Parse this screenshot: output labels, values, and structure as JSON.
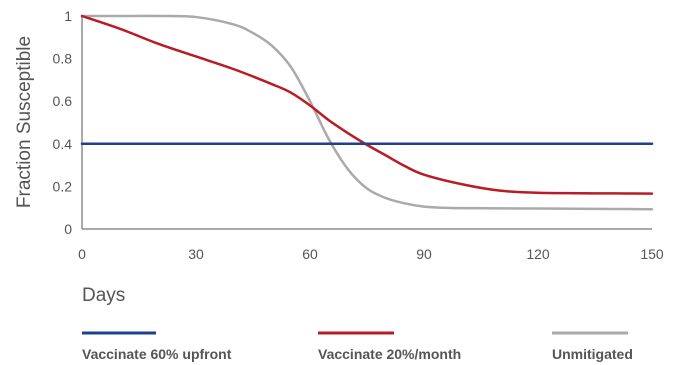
{
  "chart_data": {
    "type": "line",
    "title": "",
    "xlabel": "Days",
    "ylabel": "Fraction Susceptible",
    "xlim": [
      0,
      150
    ],
    "ylim": [
      0,
      1
    ],
    "x_ticks": [
      0,
      30,
      60,
      90,
      120,
      150
    ],
    "x_tick_labels": [
      "0",
      "30",
      "60",
      "90",
      "120",
      "150"
    ],
    "y_ticks": [
      0,
      0.2,
      0.4,
      0.6,
      0.8,
      1
    ],
    "y_tick_labels": [
      "0",
      "0.2",
      "0.4",
      "0.6",
      "0.8",
      "1"
    ],
    "grid": false,
    "legend_position": "bottom",
    "series": [
      {
        "name": "Vaccinate 60% upfront",
        "color": "#1f3f8f",
        "x": [
          0,
          30,
          60,
          90,
          120,
          150
        ],
        "y": [
          0.4,
          0.4,
          0.4,
          0.4,
          0.4,
          0.4
        ]
      },
      {
        "name": "Vaccinate 20%/month",
        "color": "#b81c25",
        "x": [
          0,
          10,
          20,
          30,
          40,
          50,
          55,
          60,
          65,
          70,
          75,
          80,
          85,
          90,
          100,
          110,
          120,
          130,
          140,
          150
        ],
        "y": [
          1.0,
          0.94,
          0.87,
          0.81,
          0.75,
          0.68,
          0.64,
          0.58,
          0.51,
          0.45,
          0.395,
          0.345,
          0.295,
          0.255,
          0.21,
          0.18,
          0.17,
          0.168,
          0.167,
          0.166
        ]
      },
      {
        "name": "Unmitigated",
        "color": "#aaaaaa",
        "x": [
          0,
          10,
          20,
          30,
          40,
          45,
          50,
          55,
          60,
          65,
          70,
          75,
          80,
          85,
          90,
          95,
          100,
          110,
          120,
          130,
          140,
          150
        ],
        "y": [
          1.0,
          1.0,
          1.0,
          0.995,
          0.96,
          0.92,
          0.86,
          0.76,
          0.6,
          0.42,
          0.28,
          0.19,
          0.145,
          0.12,
          0.105,
          0.1,
          0.098,
          0.097,
          0.096,
          0.095,
          0.094,
          0.093
        ]
      }
    ]
  }
}
